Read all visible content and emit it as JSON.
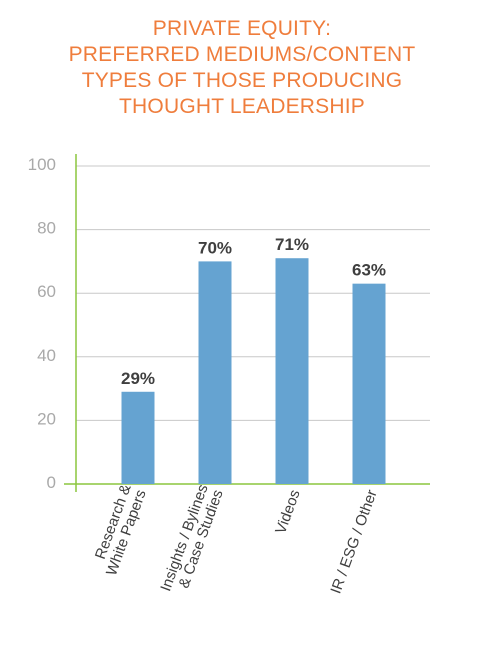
{
  "chart_data": {
    "type": "bar",
    "title_lines": [
      "PRIVATE EQUITY:",
      "PREFERRED MEDIUMS/CONTENT",
      "TYPES OF THOSE PRODUCING",
      "THOUGHT LEADERSHIP"
    ],
    "categories": [
      [
        "Research &",
        "White Papers"
      ],
      [
        "Insights / Bylines",
        "& Case Studies"
      ],
      [
        "Videos"
      ],
      [
        "IR /  ESG / Other"
      ]
    ],
    "values": [
      29,
      70,
      71,
      63
    ],
    "data_labels": [
      "29%",
      "70%",
      "71%",
      "63%"
    ],
    "yticks": [
      "0",
      "20",
      "40",
      "60",
      "80",
      "100"
    ],
    "ylim": [
      0,
      100
    ],
    "grid": true,
    "colors": {
      "title": "#ef7d3c",
      "bar": "#65a3d1",
      "axis": "#8cc63f",
      "grid": "#c8c8c8"
    }
  }
}
